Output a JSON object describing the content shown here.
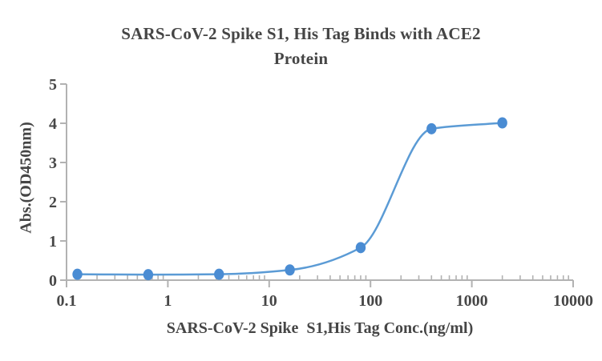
{
  "chart_data": {
    "type": "line",
    "title": "SARS-CoV-2 Spike S1, His Tag Binds with ACE2\nProtein",
    "xlabel": "SARS-CoV-2 Spike  S1,His Tag Conc.(ng/ml)",
    "ylabel": "Abs.(OD450nm)",
    "x_scale": "log",
    "x": [
      0.128,
      0.64,
      3.2,
      16,
      80,
      400,
      2000
    ],
    "y": [
      0.15,
      0.14,
      0.15,
      0.26,
      0.83,
      3.86,
      4.01
    ],
    "xlim": [
      0.1,
      10000
    ],
    "ylim": [
      0,
      5
    ],
    "x_tick_labels": [
      "0.1",
      "1",
      "10",
      "100",
      "1000",
      "10000"
    ],
    "y_tick_labels": [
      "0",
      "1",
      "2",
      "3",
      "4",
      "5"
    ],
    "grid": false,
    "legend_position": "none",
    "marker_style": "circle",
    "colors": {
      "line": "#5B9BD5",
      "marker": "#4A8CD3",
      "axis": "#B2B2B2",
      "text": "#474747"
    }
  }
}
